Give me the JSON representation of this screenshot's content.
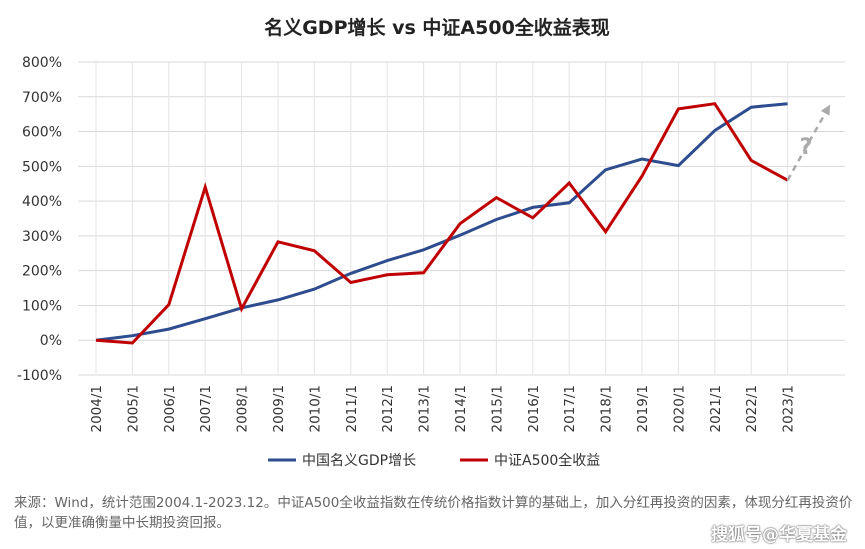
{
  "chart_data": {
    "type": "line",
    "title": "名义GDP增长 vs 中证A500全收益表现",
    "categories": [
      "2004/1",
      "2005/1",
      "2006/1",
      "2007/1",
      "2008/1",
      "2009/1",
      "2010/1",
      "2011/1",
      "2012/1",
      "2013/1",
      "2014/1",
      "2015/1",
      "2016/1",
      "2017/1",
      "2018/1",
      "2019/1",
      "2020/1",
      "2021/1",
      "2022/1",
      "2023/1"
    ],
    "y_ticks": [
      "-100%",
      "0%",
      "100%",
      "200%",
      "300%",
      "400%",
      "500%",
      "600%",
      "700%",
      "800%"
    ],
    "ylim": [
      -100,
      800
    ],
    "y_unit": "%",
    "legend_position": "bottom",
    "series": [
      {
        "name": "中国名义GDP增长",
        "color": "#2e4d8f",
        "x": [
          0,
          1,
          2,
          3,
          4,
          5,
          6,
          7,
          8,
          9,
          10,
          11,
          12,
          13,
          14,
          15,
          16,
          17,
          18,
          19
        ],
        "values": [
          0,
          13,
          32,
          62,
          93,
          116,
          147,
          192,
          229,
          260,
          302,
          347,
          382,
          395,
          490,
          521,
          502,
          603,
          670,
          680
        ]
      },
      {
        "name": "中证A500全收益",
        "color": "#c00000",
        "x": [
          0,
          1,
          2,
          3,
          4,
          5,
          6,
          7,
          8,
          9,
          10,
          11,
          12,
          13,
          14,
          15,
          16,
          17,
          18,
          19
        ],
        "values": [
          0,
          -8,
          102,
          440,
          90,
          283,
          257,
          166,
          188,
          194,
          335,
          410,
          352,
          452,
          312,
          472,
          665,
          680,
          517,
          460
        ]
      }
    ],
    "annotations": [
      {
        "text": "?",
        "arrow_from": [
          19,
          460
        ],
        "arrow_to": [
          20.1,
          665
        ],
        "color": "#aaaaaa"
      }
    ]
  },
  "footnote": "来源：Wind，统计范围2004.1-2023.12。中证A500全收益指数在传统价格指数计算的基础上，加入分红再投资的因素，体现分红再投资价值，以更准确衡量中长期投资回报。",
  "watermark": "搜狐号@华夏基金"
}
